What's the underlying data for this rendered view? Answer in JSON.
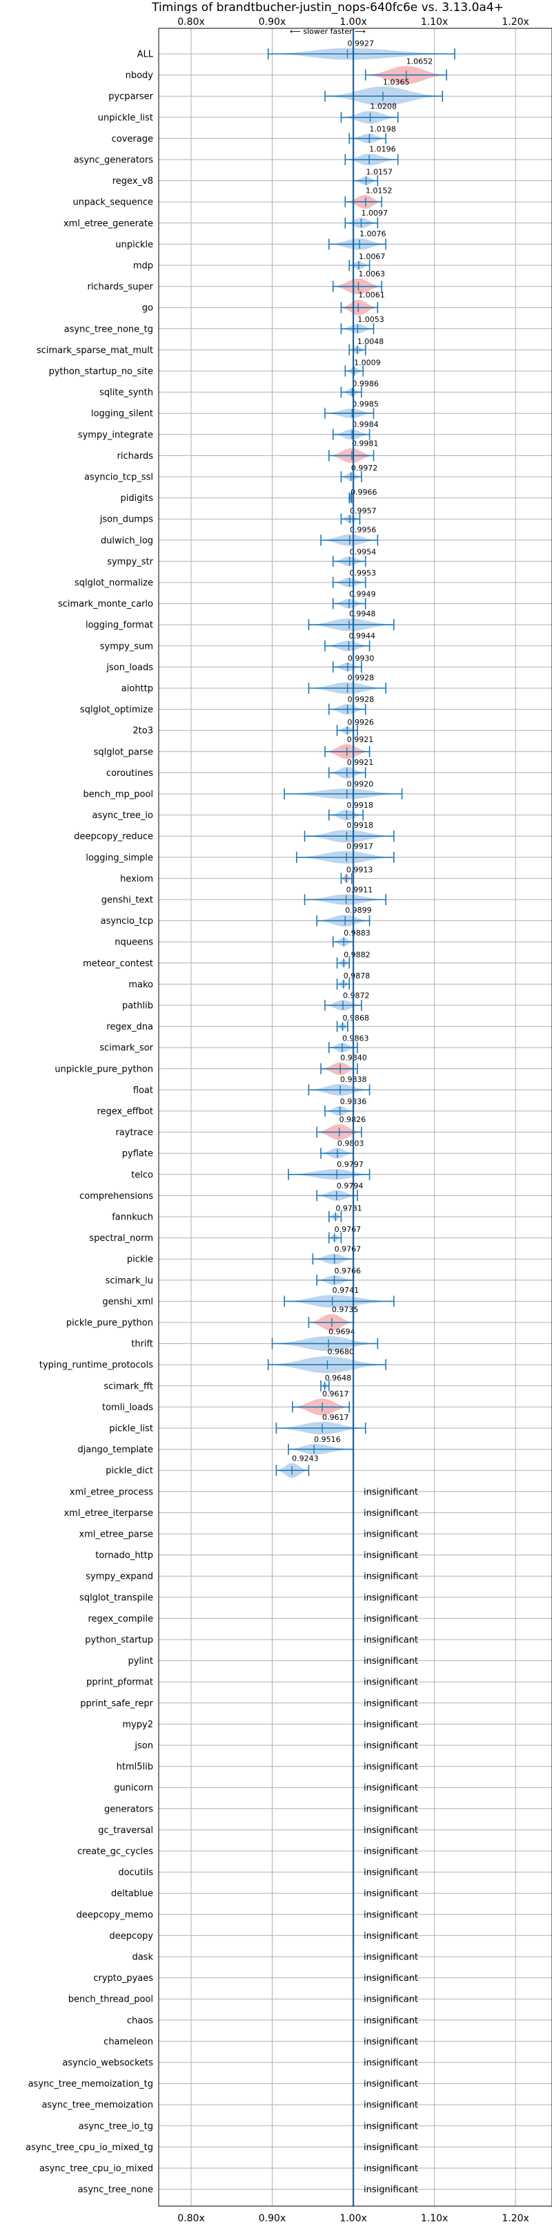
{
  "chart_data": {
    "type": "violin",
    "title": "Timings of brandtbucher-justin_nops-640fc6e vs. 3.13.0a4+",
    "subtitle": "⟵ slower   faster ⟶",
    "x_ticks": [
      "0.80x",
      "0.90x",
      "1.00x",
      "1.10x",
      "1.20x"
    ],
    "x_tick_values": [
      0.8,
      0.9,
      1.0,
      1.1,
      1.2
    ],
    "xlim": [
      0.76,
      1.245
    ],
    "reference_line": 1.0,
    "grid": true,
    "colors": {
      "faster": "#a7c8e8",
      "slower": "#f3a5aa",
      "errorbar": "#1f77b4",
      "reference": "#1f5e99"
    },
    "insignificant_label": "insignificant",
    "benchmarks": [
      {
        "name": "ALL",
        "median": 0.9927,
        "lo": 0.895,
        "hi": 1.125,
        "color": "faster",
        "width": 0.55
      },
      {
        "name": "nbody",
        "median": 1.0652,
        "lo": 1.015,
        "hi": 1.115,
        "color": "slower",
        "width": 0.85
      },
      {
        "name": "pycparser",
        "median": 1.0365,
        "lo": 0.965,
        "hi": 1.11,
        "color": "faster",
        "width": 0.9
      },
      {
        "name": "unpickle_list",
        "median": 1.0208,
        "lo": 0.985,
        "hi": 1.055,
        "color": "faster",
        "width": 0.6
      },
      {
        "name": "coverage",
        "median": 1.0198,
        "lo": 0.995,
        "hi": 1.04,
        "color": "faster",
        "width": 0.45
      },
      {
        "name": "async_generators",
        "median": 1.0196,
        "lo": 0.99,
        "hi": 1.055,
        "color": "faster",
        "width": 0.55
      },
      {
        "name": "regex_v8",
        "median": 1.0157,
        "lo": 1.0,
        "hi": 1.03,
        "color": "faster",
        "width": 0.4
      },
      {
        "name": "unpack_sequence",
        "median": 1.0152,
        "lo": 0.99,
        "hi": 1.035,
        "color": "slower",
        "width": 0.65
      },
      {
        "name": "xml_etree_generate",
        "median": 1.0097,
        "lo": 0.99,
        "hi": 1.03,
        "color": "faster",
        "width": 0.5
      },
      {
        "name": "unpickle",
        "median": 1.0076,
        "lo": 0.97,
        "hi": 1.04,
        "color": "faster",
        "width": 0.55
      },
      {
        "name": "mdp",
        "median": 1.0067,
        "lo": 0.995,
        "hi": 1.02,
        "color": "faster",
        "width": 0.4
      },
      {
        "name": "richards_super",
        "median": 1.0063,
        "lo": 0.975,
        "hi": 1.035,
        "color": "slower",
        "width": 0.75
      },
      {
        "name": "go",
        "median": 1.0061,
        "lo": 0.985,
        "hi": 1.03,
        "color": "slower",
        "width": 0.75
      },
      {
        "name": "async_tree_none_tg",
        "median": 1.0053,
        "lo": 0.985,
        "hi": 1.025,
        "color": "faster",
        "width": 0.45
      },
      {
        "name": "scimark_sparse_mat_mult",
        "median": 1.0048,
        "lo": 0.995,
        "hi": 1.015,
        "color": "faster",
        "width": 0.35
      },
      {
        "name": "python_startup_no_site",
        "median": 1.0009,
        "lo": 0.99,
        "hi": 1.012,
        "color": "faster",
        "width": 0.35
      },
      {
        "name": "sqlite_synth",
        "median": 0.9986,
        "lo": 0.985,
        "hi": 1.01,
        "color": "faster",
        "width": 0.35
      },
      {
        "name": "logging_silent",
        "median": 0.9985,
        "lo": 0.965,
        "hi": 1.025,
        "color": "faster",
        "width": 0.45
      },
      {
        "name": "sympy_integrate",
        "median": 0.9984,
        "lo": 0.975,
        "hi": 1.02,
        "color": "faster",
        "width": 0.5
      },
      {
        "name": "richards",
        "median": 0.9981,
        "lo": 0.97,
        "hi": 1.025,
        "color": "slower",
        "width": 0.7
      },
      {
        "name": "asyncio_tcp_ssl",
        "median": 0.9972,
        "lo": 0.985,
        "hi": 1.01,
        "color": "faster",
        "width": 0.4
      },
      {
        "name": "pidigits",
        "median": 0.9966,
        "lo": 0.995,
        "hi": 0.998,
        "color": "faster",
        "width": 0.1
      },
      {
        "name": "json_dumps",
        "median": 0.9957,
        "lo": 0.985,
        "hi": 1.008,
        "color": "faster",
        "width": 0.35
      },
      {
        "name": "dulwich_log",
        "median": 0.9956,
        "lo": 0.96,
        "hi": 1.03,
        "color": "faster",
        "width": 0.55
      },
      {
        "name": "sympy_str",
        "median": 0.9954,
        "lo": 0.975,
        "hi": 1.015,
        "color": "faster",
        "width": 0.45
      },
      {
        "name": "sqlglot_normalize",
        "median": 0.9953,
        "lo": 0.975,
        "hi": 1.015,
        "color": "faster",
        "width": 0.45
      },
      {
        "name": "scimark_monte_carlo",
        "median": 0.9949,
        "lo": 0.975,
        "hi": 1.015,
        "color": "faster",
        "width": 0.45
      },
      {
        "name": "logging_format",
        "median": 0.9948,
        "lo": 0.945,
        "hi": 1.05,
        "color": "faster",
        "width": 0.6
      },
      {
        "name": "sympy_sum",
        "median": 0.9944,
        "lo": 0.965,
        "hi": 1.02,
        "color": "faster",
        "width": 0.5
      },
      {
        "name": "json_loads",
        "median": 0.993,
        "lo": 0.975,
        "hi": 1.01,
        "color": "faster",
        "width": 0.4
      },
      {
        "name": "aiohttp",
        "median": 0.9928,
        "lo": 0.945,
        "hi": 1.04,
        "color": "faster",
        "width": 0.55
      },
      {
        "name": "sqlglot_optimize",
        "median": 0.9928,
        "lo": 0.97,
        "hi": 1.015,
        "color": "faster",
        "width": 0.5
      },
      {
        "name": "2to3",
        "median": 0.9926,
        "lo": 0.98,
        "hi": 1.005,
        "color": "faster",
        "width": 0.35
      },
      {
        "name": "sqlglot_parse",
        "median": 0.9921,
        "lo": 0.965,
        "hi": 1.02,
        "color": "slower",
        "width": 0.7
      },
      {
        "name": "coroutines",
        "median": 0.9921,
        "lo": 0.97,
        "hi": 1.015,
        "color": "faster",
        "width": 0.55
      },
      {
        "name": "bench_mp_pool",
        "median": 0.992,
        "lo": 0.915,
        "hi": 1.06,
        "color": "faster",
        "width": 0.5
      },
      {
        "name": "async_tree_io",
        "median": 0.9918,
        "lo": 0.97,
        "hi": 1.012,
        "color": "faster",
        "width": 0.5
      },
      {
        "name": "deepcopy_reduce",
        "median": 0.9918,
        "lo": 0.94,
        "hi": 1.05,
        "color": "faster",
        "width": 0.6
      },
      {
        "name": "logging_simple",
        "median": 0.9917,
        "lo": 0.93,
        "hi": 1.05,
        "color": "faster",
        "width": 0.6
      },
      {
        "name": "hexiom",
        "median": 0.9913,
        "lo": 0.985,
        "hi": 0.998,
        "color": "slower",
        "width": 0.4
      },
      {
        "name": "genshi_text",
        "median": 0.9911,
        "lo": 0.94,
        "hi": 1.04,
        "color": "faster",
        "width": 0.5
      },
      {
        "name": "asyncio_tcp",
        "median": 0.9899,
        "lo": 0.955,
        "hi": 1.02,
        "color": "faster",
        "width": 0.55
      },
      {
        "name": "nqueens",
        "median": 0.9883,
        "lo": 0.975,
        "hi": 1.0,
        "color": "faster",
        "width": 0.4
      },
      {
        "name": "meteor_contest",
        "median": 0.9882,
        "lo": 0.98,
        "hi": 0.995,
        "color": "faster",
        "width": 0.35
      },
      {
        "name": "mako",
        "median": 0.9878,
        "lo": 0.98,
        "hi": 0.995,
        "color": "faster",
        "width": 0.35
      },
      {
        "name": "pathlib",
        "median": 0.9872,
        "lo": 0.965,
        "hi": 1.01,
        "color": "faster",
        "width": 0.5
      },
      {
        "name": "regex_dna",
        "median": 0.9868,
        "lo": 0.98,
        "hi": 0.993,
        "color": "faster",
        "width": 0.35
      },
      {
        "name": "scimark_sor",
        "median": 0.9863,
        "lo": 0.97,
        "hi": 1.005,
        "color": "faster",
        "width": 0.45
      },
      {
        "name": "unpickle_pure_python",
        "median": 0.984,
        "lo": 0.96,
        "hi": 1.005,
        "color": "slower",
        "width": 0.6
      },
      {
        "name": "float",
        "median": 0.9838,
        "lo": 0.945,
        "hi": 1.02,
        "color": "faster",
        "width": 0.55
      },
      {
        "name": "regex_effbot",
        "median": 0.9836,
        "lo": 0.965,
        "hi": 1.0,
        "color": "faster",
        "width": 0.45
      },
      {
        "name": "raytrace",
        "median": 0.9826,
        "lo": 0.955,
        "hi": 1.01,
        "color": "slower",
        "width": 0.75
      },
      {
        "name": "pyflate",
        "median": 0.9803,
        "lo": 0.96,
        "hi": 1.0,
        "color": "faster",
        "width": 0.5
      },
      {
        "name": "telco",
        "median": 0.9797,
        "lo": 0.92,
        "hi": 1.02,
        "color": "faster",
        "width": 0.5
      },
      {
        "name": "comprehensions",
        "median": 0.9794,
        "lo": 0.955,
        "hi": 1.005,
        "color": "faster",
        "width": 0.5
      },
      {
        "name": "fannkuch",
        "median": 0.9781,
        "lo": 0.97,
        "hi": 0.985,
        "color": "faster",
        "width": 0.35
      },
      {
        "name": "spectral_norm",
        "median": 0.9767,
        "lo": 0.97,
        "hi": 0.985,
        "color": "faster",
        "width": 0.35
      },
      {
        "name": "pickle",
        "median": 0.9767,
        "lo": 0.95,
        "hi": 1.0,
        "color": "faster",
        "width": 0.5
      },
      {
        "name": "scimark_lu",
        "median": 0.9766,
        "lo": 0.955,
        "hi": 1.0,
        "color": "faster",
        "width": 0.45
      },
      {
        "name": "genshi_xml",
        "median": 0.9741,
        "lo": 0.915,
        "hi": 1.05,
        "color": "faster",
        "width": 0.6
      },
      {
        "name": "pickle_pure_python",
        "median": 0.9735,
        "lo": 0.945,
        "hi": 1.0,
        "color": "slower",
        "width": 0.8
      },
      {
        "name": "thrift",
        "median": 0.9694,
        "lo": 0.9,
        "hi": 1.03,
        "color": "faster",
        "width": 0.7
      },
      {
        "name": "typing_runtime_protocols",
        "median": 0.968,
        "lo": 0.895,
        "hi": 1.04,
        "color": "faster",
        "width": 0.8
      },
      {
        "name": "scimark_fft",
        "median": 0.9648,
        "lo": 0.96,
        "hi": 0.97,
        "color": "faster",
        "width": 0.3
      },
      {
        "name": "tomli_loads",
        "median": 0.9617,
        "lo": 0.925,
        "hi": 0.995,
        "color": "slower",
        "width": 0.8
      },
      {
        "name": "pickle_list",
        "median": 0.9617,
        "lo": 0.905,
        "hi": 1.015,
        "color": "faster",
        "width": 0.6
      },
      {
        "name": "django_template",
        "median": 0.9516,
        "lo": 0.92,
        "hi": 1.0,
        "color": "faster",
        "width": 0.5
      },
      {
        "name": "pickle_dict",
        "median": 0.9243,
        "lo": 0.905,
        "hi": 0.945,
        "color": "faster",
        "width": 0.7
      },
      {
        "name": "xml_etree_process",
        "insignificant": true
      },
      {
        "name": "xml_etree_iterparse",
        "insignificant": true
      },
      {
        "name": "xml_etree_parse",
        "insignificant": true
      },
      {
        "name": "tornado_http",
        "insignificant": true
      },
      {
        "name": "sympy_expand",
        "insignificant": true
      },
      {
        "name": "sqlglot_transpile",
        "insignificant": true
      },
      {
        "name": "regex_compile",
        "insignificant": true
      },
      {
        "name": "python_startup",
        "insignificant": true
      },
      {
        "name": "pylint",
        "insignificant": true
      },
      {
        "name": "pprint_pformat",
        "insignificant": true
      },
      {
        "name": "pprint_safe_repr",
        "insignificant": true
      },
      {
        "name": "mypy2",
        "insignificant": true
      },
      {
        "name": "json",
        "insignificant": true
      },
      {
        "name": "html5lib",
        "insignificant": true
      },
      {
        "name": "gunicorn",
        "insignificant": true
      },
      {
        "name": "generators",
        "insignificant": true
      },
      {
        "name": "gc_traversal",
        "insignificant": true
      },
      {
        "name": "create_gc_cycles",
        "insignificant": true
      },
      {
        "name": "docutils",
        "insignificant": true
      },
      {
        "name": "deltablue",
        "insignificant": true
      },
      {
        "name": "deepcopy_memo",
        "insignificant": true
      },
      {
        "name": "deepcopy",
        "insignificant": true
      },
      {
        "name": "dask",
        "insignificant": true
      },
      {
        "name": "crypto_pyaes",
        "insignificant": true
      },
      {
        "name": "bench_thread_pool",
        "insignificant": true
      },
      {
        "name": "chaos",
        "insignificant": true
      },
      {
        "name": "chameleon",
        "insignificant": true
      },
      {
        "name": "asyncio_websockets",
        "insignificant": true
      },
      {
        "name": "async_tree_memoization_tg",
        "insignificant": true
      },
      {
        "name": "async_tree_memoization",
        "insignificant": true
      },
      {
        "name": "async_tree_io_tg",
        "insignificant": true
      },
      {
        "name": "async_tree_cpu_io_mixed_tg",
        "insignificant": true
      },
      {
        "name": "async_tree_cpu_io_mixed",
        "insignificant": true
      },
      {
        "name": "async_tree_none",
        "insignificant": true
      }
    ]
  }
}
